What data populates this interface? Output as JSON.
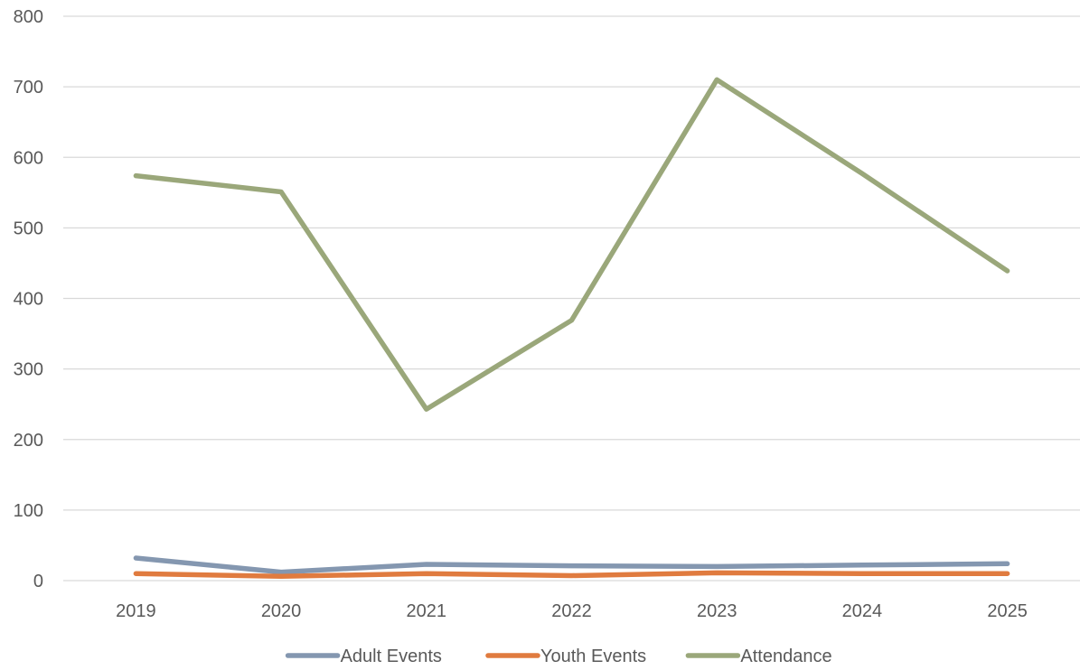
{
  "chart_data": {
    "type": "line",
    "title": "",
    "xlabel": "",
    "ylabel": "",
    "categories": [
      "2019",
      "2020",
      "2021",
      "2022",
      "2023",
      "2024",
      "2025"
    ],
    "ylim": [
      0,
      800
    ],
    "yticks": [
      0,
      100,
      200,
      300,
      400,
      500,
      600,
      700,
      800
    ],
    "grid": true,
    "legend_position": "bottom",
    "series": [
      {
        "name": "Adult Events",
        "color": "#8497b0",
        "values": [
          32,
          12,
          23,
          21,
          20,
          22,
          24
        ]
      },
      {
        "name": "Youth Events",
        "color": "#e07b3f",
        "values": [
          10,
          6,
          10,
          7,
          11,
          10,
          10
        ]
      },
      {
        "name": "Attendance",
        "color": "#9aa77a",
        "values": [
          574,
          551,
          243,
          369,
          710,
          577,
          439
        ]
      }
    ]
  }
}
